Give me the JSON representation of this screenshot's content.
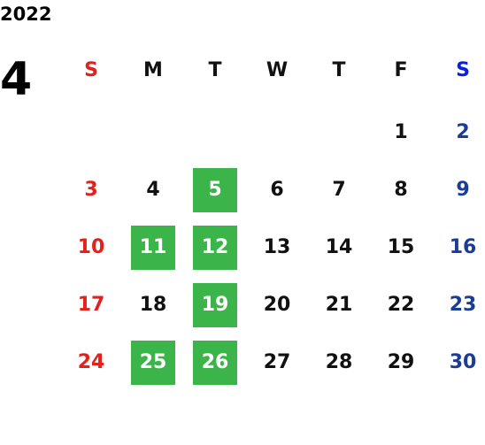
{
  "year": "2022",
  "month": "4",
  "weekdays": [
    "S",
    "M",
    "T",
    "W",
    "T",
    "F",
    "S"
  ],
  "weekday_colors": [
    "#e3201b",
    "#111111",
    "#111111",
    "#111111",
    "#111111",
    "#111111",
    "#0a1fe6"
  ],
  "date_colors": [
    "#e3201b",
    "#111111",
    "#111111",
    "#111111",
    "#111111",
    "#111111",
    "#1c3d96"
  ],
  "weeks": [
    [
      null,
      null,
      null,
      null,
      null,
      "1",
      "2"
    ],
    [
      "3",
      "4",
      "5",
      "6",
      "7",
      "8",
      "9"
    ],
    [
      "10",
      "11",
      "12",
      "13",
      "14",
      "15",
      "16"
    ],
    [
      "17",
      "18",
      "19",
      "20",
      "21",
      "22",
      "23"
    ],
    [
      "24",
      "25",
      "26",
      "27",
      "28",
      "29",
      "30"
    ]
  ],
  "highlighted_days": [
    "5",
    "11",
    "12",
    "19",
    "25",
    "26"
  ],
  "highlight_color": "#3bb54a",
  "highlight_text_color": "#ffffff"
}
